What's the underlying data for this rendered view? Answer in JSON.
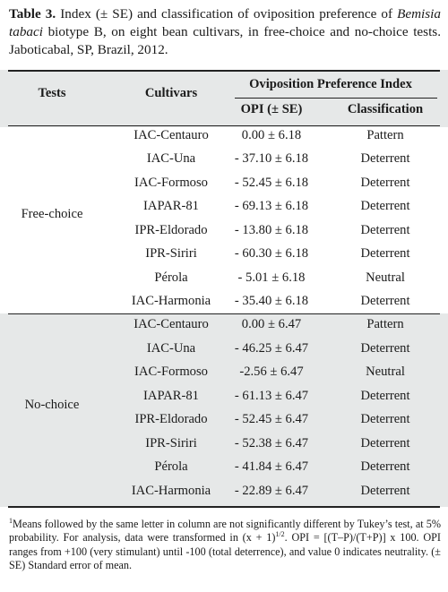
{
  "caption": {
    "label": "Table 3.",
    "text_a": " Index (± SE) and classification of oviposition preference of ",
    "species": "Bemisia tabaci",
    "text_b": " biotype B, on eight bean cultivars, in free-choice and no-choice tests. Jaboticabal, SP, Brazil, 2012."
  },
  "headers": {
    "tests": "Tests",
    "cultivars": "Cultivars",
    "group": "Oviposition Preference Index",
    "opi": "OPI (± SE)",
    "classification": "Classification"
  },
  "groups": [
    {
      "test": "Free-choice",
      "rows": [
        {
          "cultivar": "IAC-Centauro",
          "opi": "0.00 ± 6.18",
          "classification": "Pattern"
        },
        {
          "cultivar": "IAC-Una",
          "opi": "- 37.10 ± 6.18",
          "classification": "Deterrent"
        },
        {
          "cultivar": "IAC-Formoso",
          "opi": "- 52.45 ± 6.18",
          "classification": "Deterrent"
        },
        {
          "cultivar": "IAPAR-81",
          "opi": "- 69.13 ± 6.18",
          "classification": "Deterrent"
        },
        {
          "cultivar": "IPR-Eldorado",
          "opi": "- 13.80 ± 6.18",
          "classification": "Deterrent"
        },
        {
          "cultivar": "IPR-Siriri",
          "opi": "- 60.30 ± 6.18",
          "classification": "Deterrent"
        },
        {
          "cultivar": "Pérola",
          "opi": "- 5.01 ± 6.18",
          "classification": "Neutral"
        },
        {
          "cultivar": "IAC-Harmonia",
          "opi": "- 35.40 ± 6.18",
          "classification": "Deterrent"
        }
      ]
    },
    {
      "test": "No-choice",
      "rows": [
        {
          "cultivar": "IAC-Centauro",
          "opi": "0.00 ± 6.47",
          "classification": "Pattern"
        },
        {
          "cultivar": "IAC-Una",
          "opi": "- 46.25 ± 6.47",
          "classification": "Deterrent"
        },
        {
          "cultivar": "IAC-Formoso",
          "opi": "-2.56 ± 6.47",
          "classification": "Neutral"
        },
        {
          "cultivar": "IAPAR-81",
          "opi": "- 61.13 ± 6.47",
          "classification": "Deterrent"
        },
        {
          "cultivar": "IPR-Eldorado",
          "opi": "- 52.45 ± 6.47",
          "classification": "Deterrent"
        },
        {
          "cultivar": "IPR-Siriri",
          "opi": "- 52.38 ± 6.47",
          "classification": "Deterrent"
        },
        {
          "cultivar": "Pérola",
          "opi": "- 41.84 ± 6.47",
          "classification": "Deterrent"
        },
        {
          "cultivar": "IAC-Harmonia",
          "opi": "- 22.89 ± 6.47",
          "classification": "Deterrent"
        }
      ]
    }
  ],
  "footnote": {
    "marker": "1",
    "text_a": "Means followed by the same letter in column are not significantly different by Tukey’s test, at 5% probability. For analysis, data were transformed in (x + 1)",
    "power": "1/2",
    "text_b": ". OPI = [(T–P)/(T+P)] x 100. OPI ranges from +100 (very stimulant) until -100 (total deterrence), and value 0 indicates neutrality. (± SE) Standard error of mean."
  }
}
